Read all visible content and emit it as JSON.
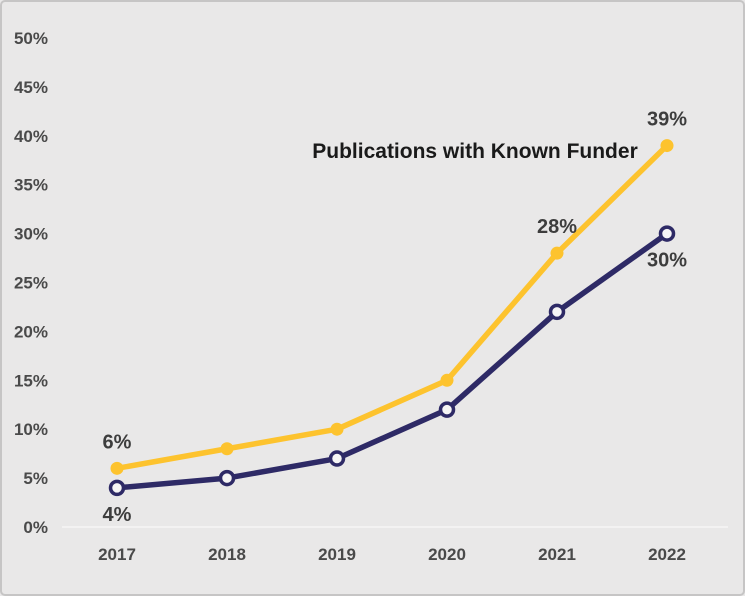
{
  "colors": {
    "background": "#e9e8e8",
    "frame_border": "#c6c5c5",
    "axis_line": "#f3f2f2",
    "tick_text": "#4a4a4a",
    "data_label_text": "#3d3d3d",
    "title_text": "#1a1a1a",
    "series_yellow": "#fdc32e",
    "series_navy": "#2e2a66",
    "marker_open_fill": "#f6f5f5"
  },
  "chart_data": {
    "type": "line",
    "title": "Publications with Known Funder",
    "categories": [
      "2017",
      "2018",
      "2019",
      "2020",
      "2021",
      "2022"
    ],
    "series": [
      {
        "name": "Publications with Known Funder",
        "color_key": "series_yellow",
        "marker": "filled-circle",
        "values": [
          6,
          8,
          10,
          15,
          28,
          39
        ]
      },
      {
        "name": "",
        "color_key": "series_navy",
        "marker": "open-circle",
        "values": [
          4,
          5,
          7,
          12,
          22,
          30
        ]
      }
    ],
    "y_axis": {
      "min": 0,
      "max": 50,
      "tick_step": 5,
      "tick_labels": [
        "0%",
        "5%",
        "10%",
        "15%",
        "20%",
        "25%",
        "30%",
        "35%",
        "40%",
        "45%",
        "50%"
      ]
    },
    "x_axis": {
      "tick_labels": [
        "2017",
        "2018",
        "2019",
        "2020",
        "2021",
        "2022"
      ]
    },
    "point_labels": [
      {
        "text": "6%",
        "series": 0,
        "point": 0,
        "position": "above"
      },
      {
        "text": "4%",
        "series": 1,
        "point": 0,
        "position": "below"
      },
      {
        "text": "28%",
        "series": 0,
        "point": 4,
        "position": "above"
      },
      {
        "text": "39%",
        "series": 0,
        "point": 5,
        "position": "above"
      },
      {
        "text": "30%",
        "series": 1,
        "point": 5,
        "position": "below"
      }
    ],
    "grid": false,
    "legend": "none"
  }
}
